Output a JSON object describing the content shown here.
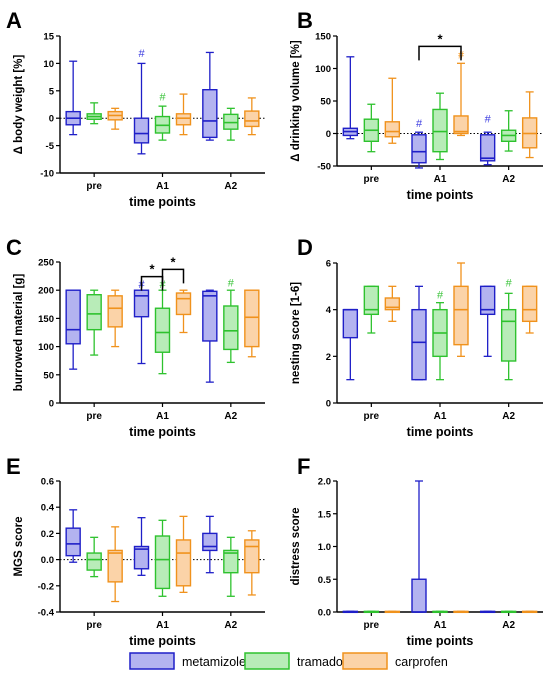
{
  "colors": {
    "metamizole": {
      "stroke": "#1f1fc8",
      "fill": "#b3b3f0"
    },
    "tramadol": {
      "stroke": "#2ec22e",
      "fill": "#b8ecb8"
    },
    "carprofen": {
      "stroke": "#f0921c",
      "fill": "#fbd3a8"
    },
    "hash_metamizole": "#3a3ae0",
    "hash_tramadol": "#3cc43c",
    "hash_carprofen": "#f39a2a"
  },
  "legend": {
    "items": [
      {
        "name": "metamizole",
        "key": "metamizole"
      },
      {
        "name": "tramadol",
        "key": "tramadol"
      },
      {
        "name": "carprofen",
        "key": "carprofen"
      }
    ]
  },
  "chart_data": [
    {
      "panel_letter": "A",
      "type": "box",
      "ylabel": "Δ body weight [%]",
      "xlabel": "time points",
      "categories": [
        "pre",
        "A1",
        "A2"
      ],
      "ylim": [
        -10,
        15
      ],
      "yticks": [
        "-10",
        "-5",
        "0",
        "5",
        "10",
        "15"
      ],
      "ytick_values": [
        -10,
        -5,
        0,
        5,
        10,
        15
      ],
      "zero_line": 0,
      "boxes": [
        [
          [
            -3,
            -1.2,
            0,
            1.2,
            10.4
          ],
          [
            -1,
            -0.2,
            0.3,
            0.8,
            2.8
          ],
          [
            -2,
            -0.3,
            0.5,
            1.2,
            1.8
          ]
        ],
        [
          [
            -6.5,
            -4.5,
            -2.8,
            0,
            10
          ],
          [
            -4,
            -2.7,
            -1.3,
            0.3,
            2.2
          ],
          [
            -3,
            -1.2,
            0,
            0.8,
            4.4
          ]
        ],
        [
          [
            -4,
            -3.5,
            -0.5,
            5.2,
            12
          ],
          [
            -4,
            -2,
            -0.8,
            0.7,
            1.8
          ],
          [
            -3,
            -1.5,
            -0.5,
            1.3,
            3.7
          ]
        ]
      ],
      "hashes": [
        {
          "category": 1,
          "series": 0,
          "y": 10.8
        },
        {
          "category": 1,
          "series": 1,
          "y": 2.9
        }
      ],
      "sig_brackets": []
    },
    {
      "panel_letter": "B",
      "type": "box",
      "ylabel": "Δ drinking volume [%]",
      "xlabel": "time points",
      "categories": [
        "pre",
        "A1",
        "A2"
      ],
      "ylim": [
        -50,
        150
      ],
      "yticks": [
        "-50",
        "0",
        "50",
        "100",
        "150"
      ],
      "ytick_values": [
        -50,
        0,
        50,
        100,
        150
      ],
      "zero_line": 0,
      "boxes": [
        [
          [
            -8,
            -3,
            3,
            8,
            118
          ],
          [
            -28,
            -12,
            5,
            22,
            45
          ],
          [
            -15,
            -5,
            3,
            18,
            85
          ]
        ],
        [
          [
            -53,
            -45,
            -28,
            -2,
            2
          ],
          [
            -40,
            -28,
            3,
            37,
            62
          ],
          [
            -3,
            0,
            3,
            27,
            108
          ]
        ],
        [
          [
            -48,
            -42,
            -38,
            -2,
            2
          ],
          [
            -27,
            -12,
            -3,
            5,
            35
          ],
          [
            -37,
            -22,
            0,
            24,
            64
          ]
        ]
      ],
      "hashes": [
        {
          "category": 1,
          "series": 0,
          "y": 7
        },
        {
          "category": 1,
          "series": 2,
          "y": 112
        },
        {
          "category": 2,
          "series": 0,
          "y": 14
        }
      ],
      "sig_brackets": [
        {
          "from": [
            1,
            0
          ],
          "to": [
            1,
            2
          ],
          "y": 134,
          "label": "*"
        }
      ]
    },
    {
      "panel_letter": "C",
      "type": "box",
      "ylabel": "burrowed material [g]",
      "xlabel": "time points",
      "categories": [
        "pre",
        "A1",
        "A2"
      ],
      "ylim": [
        0,
        250
      ],
      "yticks": [
        "0",
        "50",
        "100",
        "150",
        "200",
        "250"
      ],
      "ytick_values": [
        0,
        50,
        100,
        150,
        200,
        250
      ],
      "zero_line": null,
      "boxes": [
        [
          [
            60,
            105,
            130,
            200,
            200
          ],
          [
            85,
            130,
            158,
            192,
            200
          ],
          [
            100,
            135,
            168,
            190,
            200
          ]
        ],
        [
          [
            70,
            153,
            190,
            200,
            200
          ],
          [
            52,
            90,
            125,
            168,
            200
          ],
          [
            125,
            157,
            185,
            195,
            200
          ]
        ],
        [
          [
            37,
            110,
            190,
            198,
            200
          ],
          [
            72,
            95,
            128,
            172,
            200
          ],
          [
            82,
            100,
            152,
            200,
            200
          ]
        ]
      ],
      "hashes": [
        {
          "category": 1,
          "series": 0,
          "y": 200
        },
        {
          "category": 1,
          "series": 1,
          "y": 200
        },
        {
          "category": 2,
          "series": 1,
          "y": 203
        }
      ],
      "sig_brackets": [
        {
          "from": [
            1,
            0
          ],
          "to": [
            1,
            1
          ],
          "y": 224,
          "label": "*"
        },
        {
          "from": [
            1,
            1
          ],
          "to": [
            1,
            2
          ],
          "y": 237,
          "label": "*"
        }
      ]
    },
    {
      "panel_letter": "D",
      "type": "box",
      "ylabel": "nesting score [1-6]",
      "xlabel": "time points",
      "categories": [
        "pre",
        "A1",
        "A2"
      ],
      "ylim": [
        0,
        6
      ],
      "yticks": [
        "0",
        "2",
        "4",
        "6"
      ],
      "ytick_values": [
        0,
        2,
        4,
        6
      ],
      "zero_line": null,
      "boxes": [
        [
          [
            1,
            2.8,
            4,
            4,
            4
          ],
          [
            3,
            3.8,
            4,
            5,
            5
          ],
          [
            3.5,
            4,
            4.1,
            4.5,
            5
          ]
        ],
        [
          [
            1,
            1,
            2.6,
            4,
            5
          ],
          [
            1,
            2,
            3,
            4,
            4.3
          ],
          [
            2,
            2.5,
            4,
            5,
            6
          ]
        ],
        [
          [
            2,
            3.8,
            4,
            5,
            5
          ],
          [
            1,
            1.8,
            3.5,
            4,
            4.7
          ],
          [
            3,
            3.5,
            4,
            5,
            5
          ]
        ]
      ],
      "hashes": [
        {
          "category": 1,
          "series": 1,
          "y": 4.4
        },
        {
          "category": 2,
          "series": 1,
          "y": 4.9
        }
      ],
      "sig_brackets": []
    },
    {
      "panel_letter": "E",
      "type": "box",
      "ylabel": "MGS score",
      "xlabel": "time points",
      "categories": [
        "pre",
        "A1",
        "A2"
      ],
      "ylim": [
        -0.4,
        0.6
      ],
      "yticks": [
        "-0.4",
        "-0.2",
        "0.0",
        "0.2",
        "0.4",
        "0.6"
      ],
      "ytick_values": [
        -0.4,
        -0.2,
        0,
        0.2,
        0.4,
        0.6
      ],
      "zero_line": 0,
      "boxes": [
        [
          [
            -0.02,
            0.03,
            0.12,
            0.24,
            0.38
          ],
          [
            -0.13,
            -0.08,
            0,
            0.05,
            0.17
          ],
          [
            -0.32,
            -0.17,
            0.05,
            0.07,
            0.25
          ]
        ],
        [
          [
            -0.12,
            -0.07,
            0.08,
            0.1,
            0.32
          ],
          [
            -0.28,
            -0.22,
            0,
            0.18,
            0.3
          ],
          [
            -0.25,
            -0.2,
            0.05,
            0.15,
            0.33
          ]
        ],
        [
          [
            -0.1,
            0.07,
            0.1,
            0.2,
            0.33
          ],
          [
            -0.28,
            -0.1,
            0.05,
            0.07,
            0.17
          ],
          [
            -0.27,
            -0.1,
            0.1,
            0.15,
            0.22
          ]
        ]
      ],
      "hashes": [],
      "sig_brackets": []
    },
    {
      "panel_letter": "F",
      "type": "box",
      "ylabel": "distress score",
      "xlabel": "time points",
      "categories": [
        "pre",
        "A1",
        "A2"
      ],
      "ylim": [
        0,
        2
      ],
      "yticks": [
        "0.0",
        "0.5",
        "1.0",
        "1.5",
        "2.0"
      ],
      "ytick_values": [
        0,
        0.5,
        1,
        1.5,
        2
      ],
      "zero_line": null,
      "boxes": [
        [
          [
            0,
            0,
            0,
            0.01,
            0.01
          ],
          [
            0,
            0,
            0,
            0.01,
            0.01
          ],
          [
            0,
            0,
            0,
            0.01,
            0.01
          ]
        ],
        [
          [
            0,
            0,
            0,
            0.5,
            2
          ],
          [
            0,
            0,
            0,
            0.01,
            0.01
          ],
          [
            0,
            0,
            0,
            0.01,
            0.01
          ]
        ],
        [
          [
            0,
            0,
            0,
            0.01,
            0.01
          ],
          [
            0,
            0,
            0,
            0.01,
            0.01
          ],
          [
            0,
            0,
            0,
            0.01,
            0.01
          ]
        ]
      ],
      "hashes": [],
      "sig_brackets": []
    }
  ]
}
